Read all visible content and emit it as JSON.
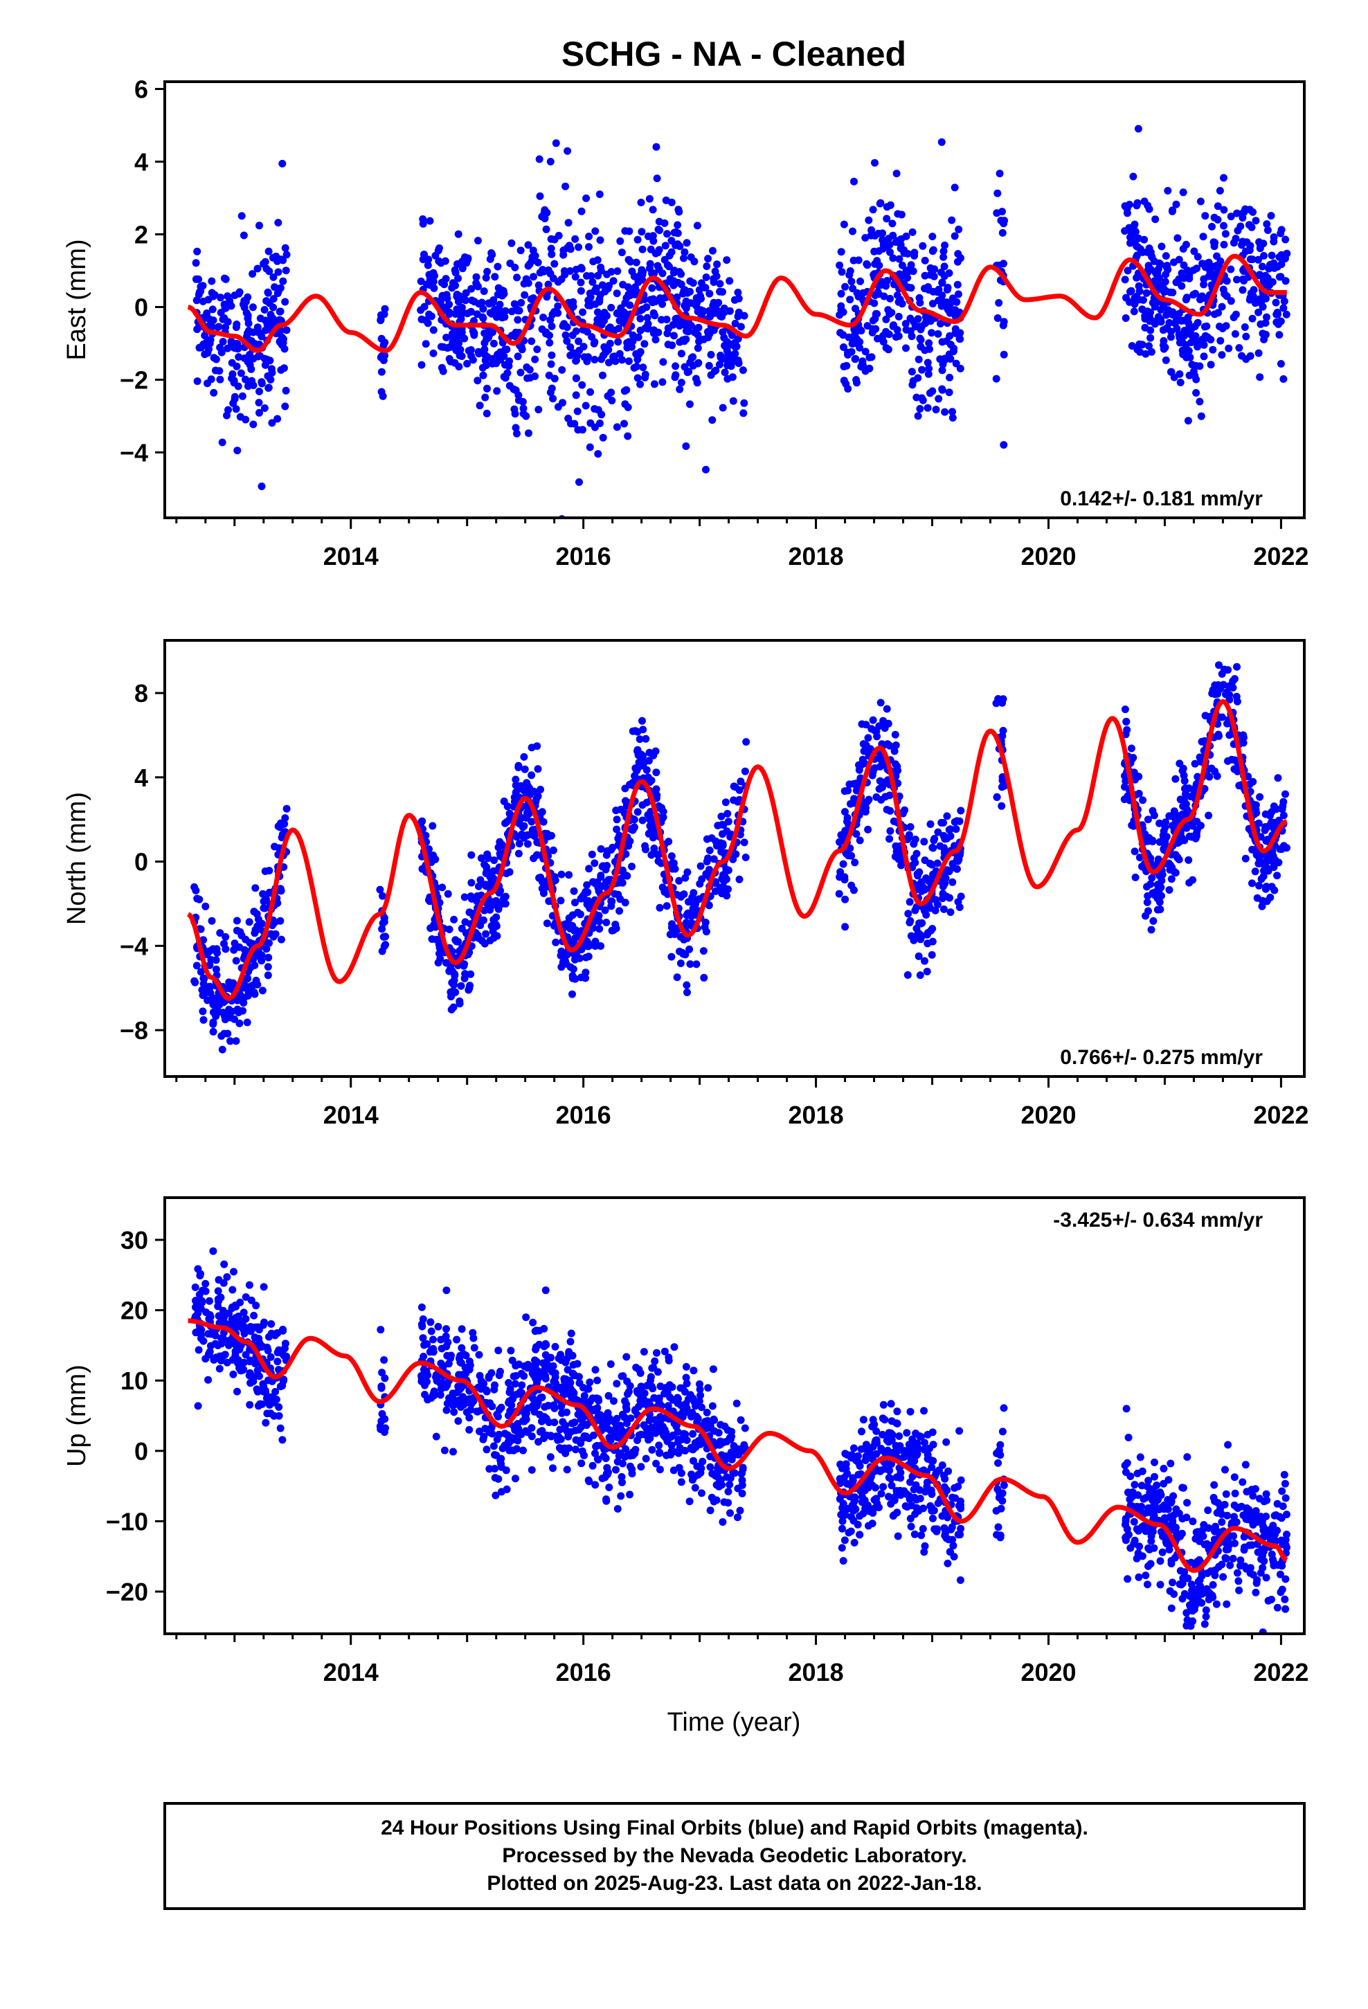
{
  "title": "SCHG  - NA - Cleaned",
  "footer": {
    "lines": [
      "24 Hour Positions Using Final Orbits (blue) and Rapid Orbits (magenta).",
      "Processed by the Nevada Geodetic Laboratory.",
      "Plotted on 2025-Aug-23. Last data on 2022-Jan-18."
    ]
  },
  "colors": {
    "points": "#0000ff",
    "fit": "#ff0000",
    "axes": "#000000"
  },
  "chart_data": [
    {
      "type": "scatter",
      "name": "east",
      "title": "",
      "xlabel": "",
      "ylabel": "East (mm)",
      "xlim": [
        2012.4,
        2022.2
      ],
      "ylim": [
        -5.8,
        6.2
      ],
      "xticks": [
        2014,
        2016,
        2018,
        2020,
        2022
      ],
      "yticks": [
        -4,
        -2,
        0,
        2,
        4,
        6
      ],
      "ytick_labels": [
        "−4",
        "−2",
        "0",
        "2",
        "4",
        "6"
      ],
      "rate_label": "0.142+/- 0.181 mm/yr",
      "rate_position": "bottom-right",
      "grid": false,
      "data_segments": [
        [
          2012.65,
          2013.45
        ],
        [
          2014.25,
          2014.3
        ],
        [
          2014.6,
          2017.4
        ],
        [
          2018.2,
          2019.25
        ],
        [
          2019.55,
          2019.62
        ],
        [
          2020.65,
          2022.05
        ]
      ],
      "fit": {
        "x": [
          2012.6,
          2012.8,
          2013.0,
          2013.2,
          2013.4,
          2013.7,
          2014.0,
          2014.3,
          2014.6,
          2014.9,
          2015.2,
          2015.4,
          2015.7,
          2016.0,
          2016.3,
          2016.6,
          2016.9,
          2017.2,
          2017.4,
          2017.7,
          2018.0,
          2018.3,
          2018.6,
          2018.9,
          2019.2,
          2019.5,
          2019.8,
          2020.1,
          2020.4,
          2020.7,
          2021.0,
          2021.3,
          2021.6,
          2021.9,
          2022.05
        ],
        "y": [
          0.0,
          -0.7,
          -0.8,
          -1.2,
          -0.5,
          0.3,
          -0.7,
          -1.2,
          0.4,
          -0.5,
          -0.5,
          -1.0,
          0.5,
          -0.5,
          -0.8,
          0.8,
          -0.3,
          -0.5,
          -0.8,
          0.8,
          -0.2,
          -0.5,
          1.0,
          -0.1,
          -0.4,
          1.1,
          0.2,
          0.3,
          -0.3,
          1.3,
          0.2,
          -0.2,
          1.4,
          0.4,
          0.4
        ]
      },
      "points": {
        "count": 1900,
        "spread": [
          [
            2012.6,
            1.0
          ],
          [
            2013.5,
            1.3
          ],
          [
            2014.5,
            1.0
          ],
          [
            2015.3,
            1.1
          ],
          [
            2015.6,
            1.7
          ],
          [
            2016.0,
            1.7
          ],
          [
            2016.5,
            1.4
          ],
          [
            2017.4,
            0.9
          ],
          [
            2018.2,
            1.3
          ],
          [
            2019.2,
            1.3
          ],
          [
            2019.6,
            1.7
          ],
          [
            2020.7,
            1.0
          ],
          [
            2021.4,
            1.2
          ],
          [
            2022.1,
            1.0
          ]
        ]
      }
    },
    {
      "type": "scatter",
      "name": "north",
      "title": "",
      "xlabel": "",
      "ylabel": "North (mm)",
      "xlim": [
        2012.4,
        2022.2
      ],
      "ylim": [
        -10.2,
        10.5
      ],
      "xticks": [
        2014,
        2016,
        2018,
        2020,
        2022
      ],
      "yticks": [
        -8,
        -4,
        0,
        4,
        8
      ],
      "ytick_labels": [
        "−8",
        "−4",
        "0",
        "4",
        "8"
      ],
      "rate_label": "0.766+/- 0.275 mm/yr",
      "rate_position": "bottom-right",
      "grid": false,
      "data_segments": [
        [
          2012.65,
          2013.45
        ],
        [
          2014.25,
          2014.3
        ],
        [
          2014.6,
          2017.4
        ],
        [
          2018.2,
          2019.25
        ],
        [
          2019.55,
          2019.62
        ],
        [
          2020.65,
          2022.05
        ]
      ],
      "fit": {
        "x": [
          2012.6,
          2012.8,
          2012.95,
          2013.2,
          2013.5,
          2013.9,
          2014.25,
          2014.5,
          2014.9,
          2015.2,
          2015.5,
          2015.9,
          2016.2,
          2016.5,
          2016.9,
          2017.2,
          2017.5,
          2017.9,
          2018.2,
          2018.55,
          2018.9,
          2019.2,
          2019.5,
          2019.9,
          2020.25,
          2020.55,
          2020.9,
          2021.2,
          2021.5,
          2021.85,
          2022.05
        ],
        "y": [
          -2.5,
          -5.5,
          -6.5,
          -4.0,
          1.5,
          -5.7,
          -2.5,
          2.2,
          -4.8,
          -1.5,
          3.0,
          -4.2,
          -1.5,
          3.8,
          -3.5,
          0.0,
          4.5,
          -2.6,
          0.5,
          5.4,
          -2.0,
          0.5,
          6.2,
          -1.2,
          1.5,
          6.8,
          -0.5,
          2.0,
          7.6,
          0.5,
          1.9
        ]
      },
      "points": {
        "count": 1900,
        "spread": [
          [
            2012.6,
            1.3
          ],
          [
            2013.5,
            1.3
          ],
          [
            2014.5,
            1.0
          ],
          [
            2015.5,
            1.2
          ],
          [
            2016.5,
            1.4
          ],
          [
            2017.4,
            1.1
          ],
          [
            2018.2,
            1.1
          ],
          [
            2018.6,
            1.7
          ],
          [
            2019.2,
            1.2
          ],
          [
            2019.6,
            1.7
          ],
          [
            2020.7,
            1.2
          ],
          [
            2021.4,
            1.2
          ],
          [
            2022.1,
            1.2
          ]
        ]
      }
    },
    {
      "type": "scatter",
      "name": "up",
      "title": "",
      "xlabel": "Time (year)",
      "ylabel": "Up (mm)",
      "xlim": [
        2012.4,
        2022.2
      ],
      "ylim": [
        -26,
        36
      ],
      "xticks": [
        2014,
        2016,
        2018,
        2020,
        2022
      ],
      "yticks": [
        -20,
        -10,
        0,
        10,
        20,
        30
      ],
      "ytick_labels": [
        "−20",
        "−10",
        "0",
        "10",
        "20",
        "30"
      ],
      "rate_label": "-3.425+/- 0.634 mm/yr",
      "rate_position": "top-right",
      "grid": false,
      "data_segments": [
        [
          2012.65,
          2013.45
        ],
        [
          2014.25,
          2014.3
        ],
        [
          2014.6,
          2017.4
        ],
        [
          2018.2,
          2019.25
        ],
        [
          2019.55,
          2019.62
        ],
        [
          2020.65,
          2022.05
        ]
      ],
      "fit": {
        "x": [
          2012.6,
          2012.9,
          2013.1,
          2013.35,
          2013.65,
          2013.95,
          2014.25,
          2014.6,
          2014.95,
          2015.3,
          2015.6,
          2015.95,
          2016.25,
          2016.6,
          2016.95,
          2017.25,
          2017.6,
          2017.95,
          2018.25,
          2018.6,
          2018.95,
          2019.25,
          2019.6,
          2019.95,
          2020.25,
          2020.6,
          2020.95,
          2021.25,
          2021.6,
          2021.95,
          2022.05
        ],
        "y": [
          18.5,
          17.5,
          15.5,
          10.5,
          16.0,
          13.5,
          7.0,
          12.5,
          10.0,
          3.5,
          9.0,
          6.5,
          0.5,
          6.0,
          3.5,
          -2.5,
          2.5,
          0.0,
          -6.0,
          -1.0,
          -3.5,
          -10.0,
          -4.0,
          -6.5,
          -13.0,
          -8.0,
          -10.5,
          -17.0,
          -11.0,
          -13.5,
          -15.5
        ]
      },
      "points": {
        "count": 1900,
        "spread": [
          [
            2012.6,
            4.0
          ],
          [
            2013.5,
            4.0
          ],
          [
            2014.5,
            4.0
          ],
          [
            2015.5,
            4.5
          ],
          [
            2016.5,
            4.5
          ],
          [
            2017.4,
            4.0
          ],
          [
            2018.2,
            4.0
          ],
          [
            2019.2,
            4.5
          ],
          [
            2019.6,
            5.0
          ],
          [
            2020.7,
            4.5
          ],
          [
            2021.4,
            4.5
          ],
          [
            2022.1,
            4.0
          ]
        ]
      }
    }
  ]
}
